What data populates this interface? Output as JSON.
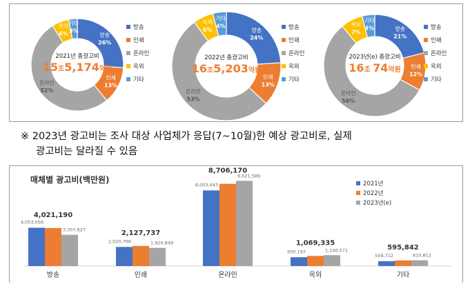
{
  "legend_items": [
    "방송",
    "인쇄",
    "온라인",
    "옥외",
    "기타"
  ],
  "colors": {
    "broadcast": "#4472c4",
    "print": "#ed7d31",
    "online": "#a5a5a5",
    "outdoor": "#ffc000",
    "other": "#5b9bd5"
  },
  "note": {
    "line1": "※ 2023년 광고비는 조사 대상 사업체가 응답(7~10월)한 예상 광고비로, 실제",
    "line2": "광고비는 달라질 수 있음"
  },
  "chart_data": [
    {
      "type": "pie",
      "caption": "2021년 총광고비",
      "total_main": "15",
      "total_unit1": "조",
      "total_rest": "5,174",
      "total_unit2": "억원",
      "categories": [
        "방송",
        "인쇄",
        "온라인",
        "옥외",
        "기타"
      ],
      "values": [
        26,
        13,
        52,
        6,
        3
      ],
      "value_labels": [
        "26%",
        "13%",
        "52%",
        "6%",
        "3%"
      ]
    },
    {
      "type": "pie",
      "caption": "2022년 총광고비",
      "total_main": "16",
      "total_unit1": "조",
      "total_rest": "5,203",
      "total_unit2": "억원",
      "categories": [
        "방송",
        "인쇄",
        "온라인",
        "옥외",
        "기타"
      ],
      "values": [
        24,
        13,
        53,
        6,
        4
      ],
      "value_labels": [
        "24%",
        "13%",
        "53%",
        "6%",
        "4%"
      ]
    },
    {
      "type": "pie",
      "caption": "2023년(e) 총광고비",
      "total_main": "16",
      "total_unit1": "조 ",
      "total_rest": "74",
      "total_unit2": "억원",
      "categories": [
        "방송",
        "인쇄",
        "온라인",
        "옥외",
        "기타"
      ],
      "values": [
        21,
        12,
        56,
        7,
        4
      ],
      "value_labels": [
        "21%",
        "12%",
        "56%",
        "7%",
        "4%"
      ]
    },
    {
      "type": "bar",
      "title": "매체별 광고비(백만원)",
      "categories": [
        "방송",
        "인쇄",
        "온라인",
        "옥외",
        "기타"
      ],
      "series": [
        {
          "name": "2021년",
          "values": [
            4053056,
            2020766,
            8003643,
            930197,
            509712
          ]
        },
        {
          "name": "2022년",
          "values": [
            4021190,
            2127737,
            8706170,
            1069335,
            595842
          ]
        },
        {
          "name": "2023년(e)",
          "values": [
            3307627,
            1920849,
            9021589,
            1146571,
            610812
          ]
        }
      ],
      "value_labels": [
        [
          "4,053,056",
          "2,020,766",
          "8,003,643",
          "930,197",
          "509,712"
        ],
        [
          "4,021,190",
          "2,127,737",
          "8,706,170",
          "1,069,335",
          "595,842"
        ],
        [
          "3,307,627",
          "1,920,849",
          "9,021,589",
          "1,146,571",
          "610,812"
        ]
      ],
      "ylim": [
        0,
        10000000
      ]
    }
  ]
}
